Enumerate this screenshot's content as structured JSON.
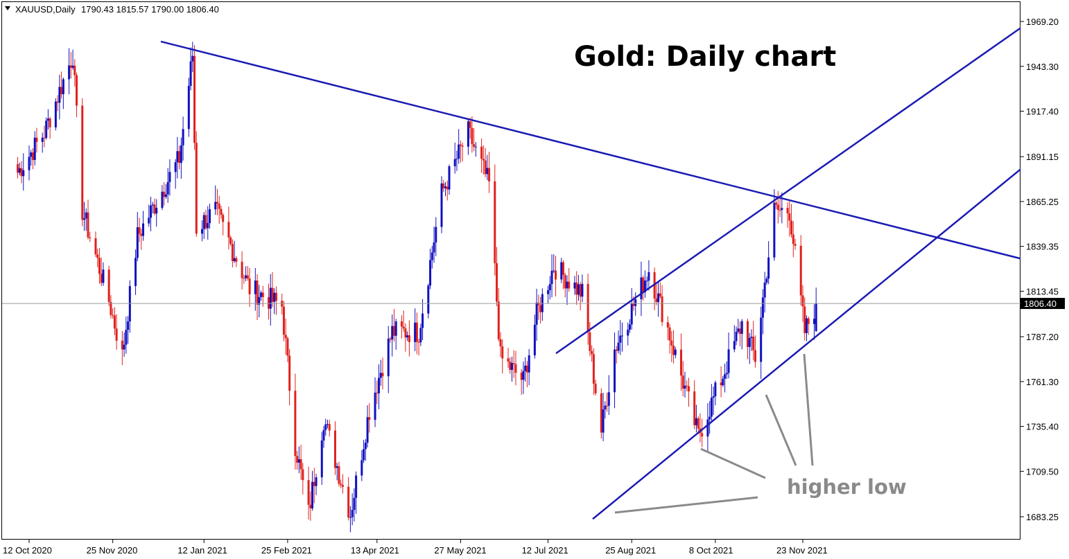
{
  "header": {
    "symbol": "XAUUSD,Daily",
    "ohlc": "1790.43 1815.57 1790.00 1806.40"
  },
  "title": "Gold: Daily chart",
  "annotation": "higher low",
  "current_price_label": "1806.40",
  "colors": {
    "bull": "#1010c0",
    "bear": "#e0201c",
    "trendline": "#1a1ab4",
    "annotation": "#8a8a8a",
    "price_line": "#9a9a9a",
    "price_tag": "#000000"
  },
  "chart_data": {
    "type": "candlestick",
    "title": "Gold: Daily chart",
    "symbol": "XAUUSD",
    "timeframe": "Daily",
    "ylim": [
      1675,
      1978
    ],
    "y_ticks": [
      "1969.20",
      "1943.30",
      "1917.40",
      "1891.15",
      "1865.25",
      "1839.35",
      "1813.45",
      "1787.20",
      "1761.30",
      "1735.40",
      "1709.50",
      "1683.25"
    ],
    "x_ticks": [
      "12 Oct 2020",
      "25 Nov 2020",
      "12 Jan 2021",
      "25 Feb 2021",
      "13 Apr 2021",
      "27 May 2021",
      "12 Jul 2021",
      "25 Aug 2021",
      "8 Oct 2021",
      "23 Nov 2021"
    ],
    "last": {
      "open": 1790.43,
      "high": 1815.57,
      "low": 1790.0,
      "close": 1806.4
    },
    "path_waypoints": [
      {
        "date": "2020-10-06",
        "price": 1882
      },
      {
        "date": "2020-10-20",
        "price": 1905
      },
      {
        "date": "2020-11-04",
        "price": 1950
      },
      {
        "date": "2020-11-09",
        "price": 1860
      },
      {
        "date": "2020-11-23",
        "price": 1808
      },
      {
        "date": "2020-11-30",
        "price": 1776
      },
      {
        "date": "2020-12-08",
        "price": 1845
      },
      {
        "date": "2020-12-30",
        "price": 1890
      },
      {
        "date": "2021-01-06",
        "price": 1950
      },
      {
        "date": "2021-01-08",
        "price": 1850
      },
      {
        "date": "2021-01-18",
        "price": 1860
      },
      {
        "date": "2021-02-05",
        "price": 1815
      },
      {
        "date": "2021-02-22",
        "price": 1805
      },
      {
        "date": "2021-03-01",
        "price": 1725
      },
      {
        "date": "2021-03-08",
        "price": 1685
      },
      {
        "date": "2021-03-16",
        "price": 1740
      },
      {
        "date": "2021-03-30",
        "price": 1685
      },
      {
        "date": "2021-04-09",
        "price": 1745
      },
      {
        "date": "2021-04-21",
        "price": 1790
      },
      {
        "date": "2021-05-05",
        "price": 1790
      },
      {
        "date": "2021-05-17",
        "price": 1870
      },
      {
        "date": "2021-05-31",
        "price": 1905
      },
      {
        "date": "2021-06-11",
        "price": 1875
      },
      {
        "date": "2021-06-17",
        "price": 1775
      },
      {
        "date": "2021-06-29",
        "price": 1762
      },
      {
        "date": "2021-07-06",
        "price": 1800
      },
      {
        "date": "2021-07-15",
        "price": 1828
      },
      {
        "date": "2021-07-30",
        "price": 1812
      },
      {
        "date": "2021-08-09",
        "price": 1733
      },
      {
        "date": "2021-08-16",
        "price": 1780
      },
      {
        "date": "2021-09-03",
        "price": 1826
      },
      {
        "date": "2021-09-13",
        "price": 1792
      },
      {
        "date": "2021-09-29",
        "price": 1730
      },
      {
        "date": "2021-10-12",
        "price": 1765
      },
      {
        "date": "2021-10-22",
        "price": 1795
      },
      {
        "date": "2021-10-29",
        "price": 1775
      },
      {
        "date": "2021-11-08",
        "price": 1860
      },
      {
        "date": "2021-11-16",
        "price": 1860
      },
      {
        "date": "2021-11-24",
        "price": 1790
      },
      {
        "date": "2021-11-30",
        "price": 1806
      }
    ],
    "trendlines": [
      {
        "name": "descending resistance",
        "from": {
          "date": "2021-01-06",
          "price": 1953
        },
        "to": {
          "date": "2021-11-16",
          "price": 1866
        }
      },
      {
        "name": "channel upper",
        "from": {
          "date": "2021-07-05",
          "price": 1769
        },
        "to": {
          "date": "2021-11-16",
          "price": 1872
        }
      },
      {
        "name": "channel lower (higher lows)",
        "from": {
          "date": "2021-08-09",
          "price": 1686
        },
        "to": {
          "date": "2021-11-24",
          "price": 1782
        }
      }
    ],
    "price_line": 1806.4
  }
}
